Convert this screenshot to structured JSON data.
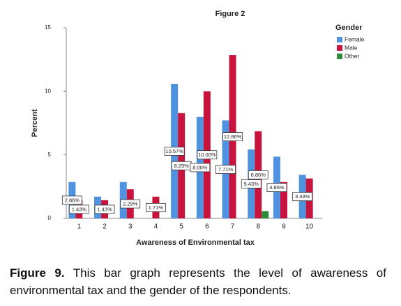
{
  "chart_data": {
    "type": "bar",
    "title": "Figure 2",
    "x_label": "Awareness of Environmental tax",
    "y_label": "Percent",
    "categories": [
      "1",
      "2",
      "3",
      "4",
      "5",
      "6",
      "7",
      "8",
      "9",
      "10"
    ],
    "series": [
      {
        "name": "Female",
        "color": "#4f93e0",
        "values": [
          2.86,
          1.71,
          2.86,
          null,
          10.57,
          8.0,
          7.71,
          5.43,
          4.86,
          3.43
        ],
        "value_labels": [
          "2.86%",
          null,
          null,
          null,
          "10.57%",
          "8.00%",
          "7.71%",
          "5.43%",
          "4.86%",
          "3.43%"
        ]
      },
      {
        "name": "Male",
        "color": "#c8143c",
        "values": [
          1.43,
          1.43,
          2.29,
          1.71,
          8.29,
          10.0,
          12.86,
          6.86,
          2.86,
          3.14
        ],
        "value_labels": [
          "1.43%",
          "1.43%",
          "2.29%",
          "1.71%",
          "8.29%",
          "10.00%",
          "12.86%",
          "6.86%",
          null,
          null
        ]
      },
      {
        "name": "Other",
        "color": "#2e8b3a",
        "values": [
          null,
          null,
          null,
          null,
          null,
          null,
          null,
          0.57,
          null,
          null
        ],
        "value_labels": [
          null,
          null,
          null,
          null,
          null,
          null,
          null,
          null,
          null,
          null
        ]
      }
    ],
    "legend_title": "Gender",
    "legend_position": "right",
    "ylim": [
      0,
      15
    ],
    "yticks": [
      0,
      5,
      10,
      15
    ],
    "grid": false
  },
  "caption": {
    "label": "Figure 9.",
    "text": "This bar graph represents the level of awareness of environmental tax and the gender of the respondents."
  }
}
